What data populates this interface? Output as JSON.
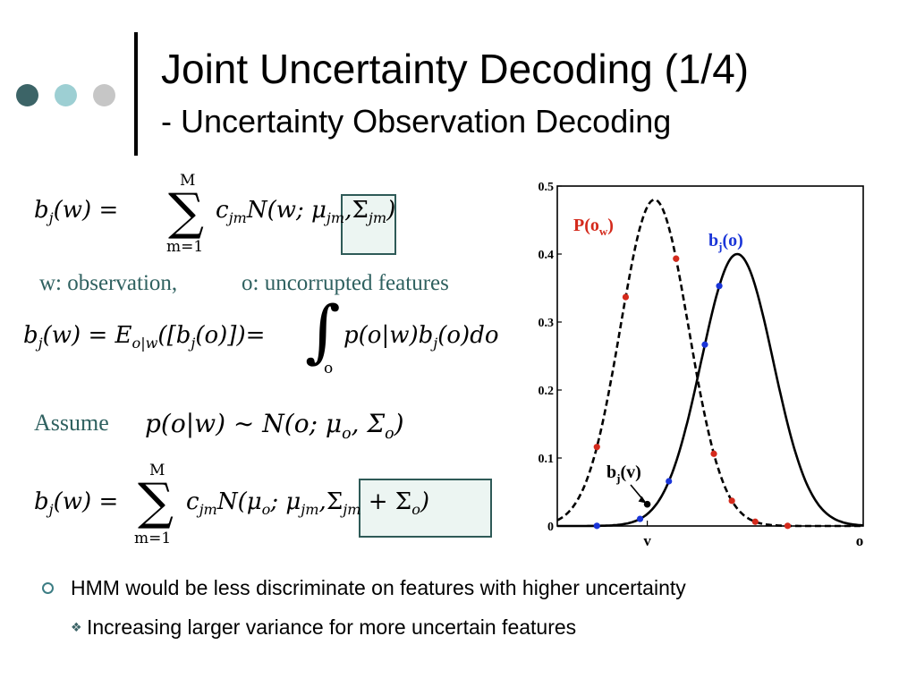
{
  "slide": {
    "title": "Joint Uncertainty Decoding (1/4)",
    "subtitle": "- Uncertainty Observation Decoding"
  },
  "text": {
    "observation_note": "w: observation,",
    "uncorrupted_note": "o: uncorrupted features",
    "assume_label": "Assume"
  },
  "equations": {
    "eq1_lhs": "b",
    "eq1_lhs_sub": "j",
    "eq1_lhs_arg": "(w) =",
    "eq1_sum_top": "M",
    "eq1_sum_bottom": "m=1",
    "eq1_term": "c",
    "eq1_term_sub": "jm",
    "eq1_normal": "N(w; μ",
    "eq1_mu_sub": "jm",
    "eq1_comma": ",",
    "eq1_sigma": "Σ",
    "eq1_sigma_sub": "jm",
    "eq1_close": ")",
    "eq2_lhs": "b",
    "eq2_lhs_sub": "j",
    "eq2_lhs_arg": "(w) = E",
    "eq2_E_sub": "o|w",
    "eq2_bracket": "([b",
    "eq2_bj_sub": "j",
    "eq2_bracket_close": "(o)])=",
    "eq2_int_sub": "o",
    "eq2_integrand": "p(o|w)b",
    "eq2_integrand_sub": "j",
    "eq2_integrand_end": "(o)do",
    "eq3_expr": "p(o|w) ∼ N(o; μ",
    "eq3_mu_sub": "o",
    "eq3_comma": ", Σ",
    "eq3_sigma_sub": "o",
    "eq3_close": ")",
    "eq4_lhs": "b",
    "eq4_lhs_sub": "j",
    "eq4_lhs_arg": "(w) =",
    "eq4_sum_top": "M",
    "eq4_sum_bottom": "m=1",
    "eq4_term": "c",
    "eq4_term_sub": "jm",
    "eq4_normal": "N(μ",
    "eq4_mu_o_sub": "o",
    "eq4_semi": "; μ",
    "eq4_mu_sub": "jm",
    "eq4_comma": ",",
    "eq4_sigma": "Σ",
    "eq4_sigma_sub": "jm",
    "eq4_plus": " + Σ",
    "eq4_sigma2_sub": "o",
    "eq4_close": ")"
  },
  "chart_data": {
    "type": "line",
    "xlabel": "o",
    "x_marker_label": "v",
    "ylim": [
      0,
      0.5
    ],
    "yticks": [
      {
        "value": 0,
        "label": "0"
      },
      {
        "value": 0.1,
        "label": "0.1"
      },
      {
        "value": 0.2,
        "label": "0.2"
      },
      {
        "value": 0.3,
        "label": "0.3"
      },
      {
        "value": 0.4,
        "label": "0.4"
      },
      {
        "value": 0.5,
        "label": "0.5"
      }
    ],
    "series": [
      {
        "name": "P(o_w)",
        "label_main": "P(o",
        "label_sub": "w",
        "label_close": ")",
        "color": "#d42a1c",
        "style": "dashed",
        "mean": 0.27,
        "peak": 0.48,
        "sd": 0.095,
        "points": [
          0.11,
          0.19,
          0.33,
          0.435,
          0.485,
          0.55,
          0.64
        ]
      },
      {
        "name": "b_j(o)",
        "label_main": "b",
        "label_sub": "j",
        "label_close": "(o)",
        "color": "#1a35d8",
        "style": "solid",
        "mean": 0.5,
        "peak": 0.4,
        "sd": 0.1,
        "points": [
          0.11,
          0.23,
          0.31,
          0.41,
          0.45
        ]
      }
    ],
    "annotation": {
      "text_main": "b",
      "text_sub": "j",
      "text_close": "(v)",
      "x": 0.25,
      "y": 0.032
    },
    "v_value": 0.25,
    "xlim": [
      0,
      0.85
    ]
  },
  "bullets": {
    "level1": "HMM would be less discriminate on features with higher uncertainty",
    "level2": "Increasing larger variance for more uncertain features",
    "diamond_glyph": "❖"
  }
}
